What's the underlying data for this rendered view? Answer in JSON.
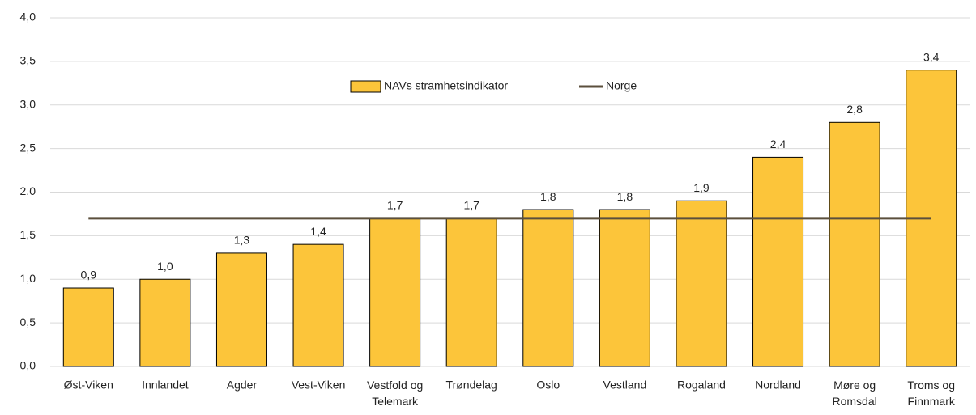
{
  "chart_data": {
    "type": "bar",
    "categories": [
      "Øst-Viken",
      "Innlandet",
      "Agder",
      "Vest-Viken",
      "Vestfold og\nTelemark",
      "Trøndelag",
      "Oslo",
      "Vestland",
      "Rogaland",
      "Nordland",
      "Møre og\nRomsdal",
      "Troms og\nFinnmark"
    ],
    "series": [
      {
        "name": "NAVs stramhetsindikator",
        "color": "#fcc53a",
        "values": [
          0.9,
          1.0,
          1.3,
          1.4,
          1.7,
          1.7,
          1.8,
          1.8,
          1.9,
          2.4,
          2.8,
          3.4
        ],
        "value_labels": [
          "0,9",
          "1,0",
          "1,3",
          "1,4",
          "1,7",
          "1,7",
          "1,8",
          "1,8",
          "1,9",
          "2,4",
          "2,8",
          "3,4"
        ]
      }
    ],
    "reference_line": {
      "name": "Norge",
      "value": 1.7,
      "color": "#5b4f3c"
    },
    "ylim": [
      0,
      4
    ],
    "yticks": [
      {
        "value": 0,
        "label": "0,0"
      },
      {
        "value": 0.5,
        "label": "0,5"
      },
      {
        "value": 1,
        "label": "1,0"
      },
      {
        "value": 1.5,
        "label": "1,5"
      },
      {
        "value": 2,
        "label": "2.0"
      },
      {
        "value": 2.5,
        "label": "2,5"
      },
      {
        "value": 3,
        "label": "3,0"
      },
      {
        "value": 3.5,
        "label": "3,5"
      },
      {
        "value": 4,
        "label": "4,0"
      }
    ],
    "grid": true,
    "legend": "top"
  }
}
